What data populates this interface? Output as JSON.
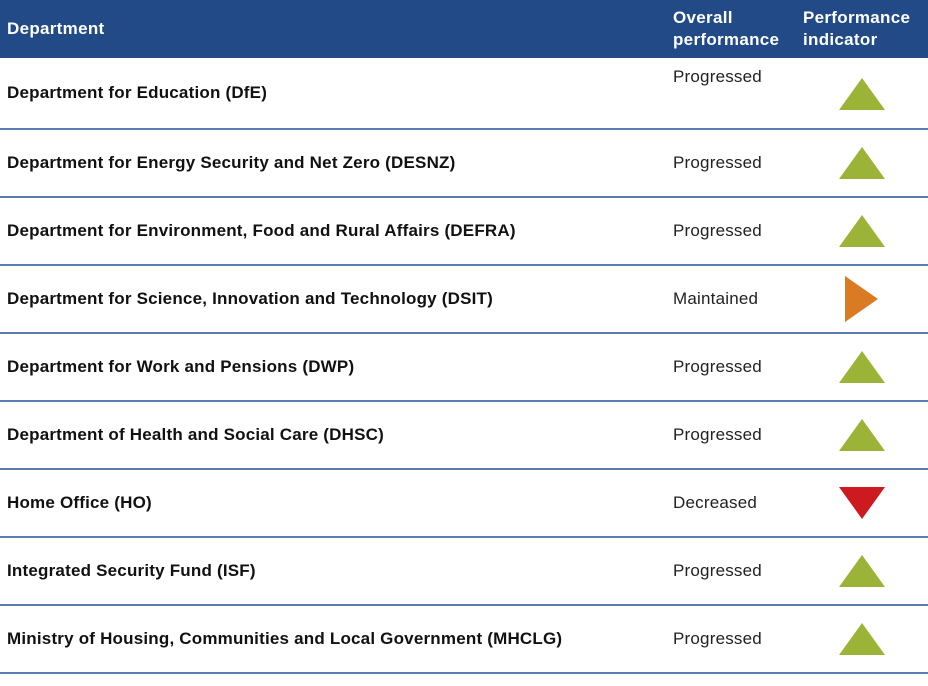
{
  "header": {
    "department": "Department",
    "overall_performance": [
      "Overall",
      "performance"
    ],
    "performance_indicator": [
      "Performance",
      "indicator"
    ]
  },
  "colors": {
    "header_bg": "#214a87",
    "progressed": "#9bb336",
    "maintained": "#d97b22",
    "decreased": "#cc1a20",
    "row_border": "#5b7bb3"
  },
  "rows": [
    {
      "department": "Department for Education (DfE)",
      "performance": "Progressed",
      "indicator": "triangle-up-green"
    },
    {
      "department": "Department for Energy Security and Net Zero (DESNZ)",
      "performance": "Progressed",
      "indicator": "triangle-up-green"
    },
    {
      "department": "Department for Environment, Food and Rural Affairs (DEFRA)",
      "performance": "Progressed",
      "indicator": "triangle-up-green"
    },
    {
      "department": "Department for Science, Innovation and Technology (DSIT)",
      "performance": "Maintained",
      "indicator": "triangle-right-orange"
    },
    {
      "department": "Department for Work and Pensions (DWP)",
      "performance": "Progressed",
      "indicator": "triangle-up-green"
    },
    {
      "department": "Department of Health and Social Care (DHSC)",
      "performance": "Progressed",
      "indicator": "triangle-up-green"
    },
    {
      "department": "Home Office (HO)",
      "performance": "Decreased",
      "indicator": "triangle-down-red"
    },
    {
      "department": "Integrated Security Fund (ISF)",
      "performance": "Progressed",
      "indicator": "triangle-up-green"
    },
    {
      "department": "Ministry of Housing, Communities and Local Government (MHCLG)",
      "performance": "Progressed",
      "indicator": "triangle-up-green"
    }
  ]
}
